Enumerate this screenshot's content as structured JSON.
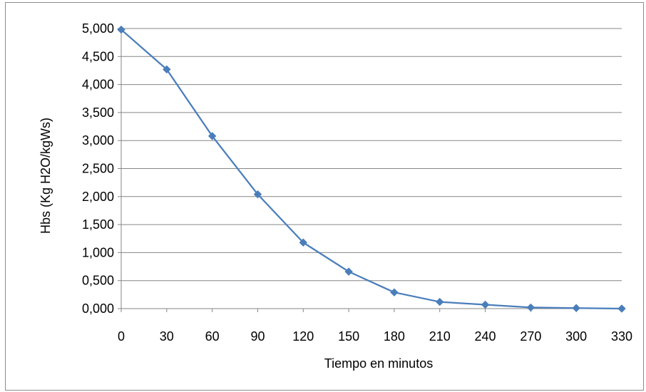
{
  "chart_data": {
    "type": "line",
    "title": "",
    "xlabel": "Tiempo en minutos",
    "ylabel": "Hbs (Kg H2O/kgWs)",
    "x": [
      0,
      30,
      60,
      90,
      120,
      150,
      180,
      210,
      240,
      270,
      300,
      330
    ],
    "x_tick_labels": [
      "0",
      "30",
      "60",
      "90",
      "120",
      "150",
      "180",
      "210",
      "240",
      "270",
      "300",
      "330"
    ],
    "y_tick_labels": [
      "0,000",
      "0,500",
      "1,000",
      "1,500",
      "2,000",
      "2,500",
      "3,000",
      "3,500",
      "4,000",
      "4,500",
      "5,000"
    ],
    "ylim": [
      0,
      5
    ],
    "grid": true,
    "legend": "none",
    "series": [
      {
        "color": "#4a7ebb",
        "marker": "diamond",
        "values": [
          4.98,
          4.27,
          3.08,
          2.04,
          1.18,
          0.66,
          0.29,
          0.12,
          0.07,
          0.02,
          0.01,
          0.0
        ]
      }
    ]
  }
}
